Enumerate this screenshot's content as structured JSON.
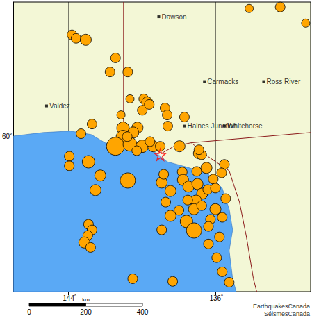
{
  "chart_data": {
    "type": "scatter",
    "xlim": [
      -147,
      -130.8
    ],
    "ylim": [
      54.7,
      64.6
    ],
    "xticks": [
      {
        "value": -144,
        "label": "-144˚"
      },
      {
        "value": -136,
        "label": "-136˚"
      }
    ],
    "yticks": [
      {
        "value": 60,
        "label": "60˚"
      }
    ],
    "grid": true,
    "color": "#ffa500",
    "marker": "circle",
    "x": [
      -132.46,
      -131.07,
      -134.15,
      -143.81,
      -143.59,
      -143.06,
      -141.44,
      -141.74,
      -140.77,
      -139.9,
      -139.71,
      -139.98,
      -139.6,
      -140.65,
      -138.74,
      -138.62,
      -138.59,
      -137.68,
      -141.14,
      -142.72,
      -143.32,
      -141.03,
      -140.24,
      -140.47,
      -141.03,
      -141.44,
      -140.65,
      -139.98,
      -139.38,
      -140.28,
      -140.8,
      -137.95,
      -136.89,
      -136.74,
      -136.89,
      -143.96,
      -143.96,
      -142.91,
      -142.27,
      -140.77,
      -142.53,
      -138.92,
      -138.44,
      -137.8,
      -137.01,
      -136.48,
      -136.11,
      -135.5,
      -135.65,
      -137.76,
      -137.46,
      -136.97,
      -136.71,
      -136.41,
      -135.99,
      -137.05,
      -137.5,
      -137.16,
      -138.7,
      -137.98,
      -136.74,
      -135.99,
      -135.62,
      -136.26,
      -135.43,
      -138.44,
      -137.57,
      -137.16,
      -138.92,
      -136.37,
      -135.77,
      -142.91,
      -142.72,
      -142.95,
      -143.14,
      -142.8,
      -136.37,
      -135.92,
      -135.62,
      -135.24,
      -140.5,
      -138.32,
      -138.81,
      -139.56,
      -139.0
    ],
    "y": [
      64.43,
      63.88,
      64.38,
      63.48,
      63.36,
      63.31,
      62.69,
      62.21,
      62.21,
      61.29,
      61.17,
      60.9,
      61.1,
      61.29,
      60.98,
      60.74,
      60.36,
      60.67,
      60.74,
      60.43,
      60.1,
      60.29,
      60.31,
      60.14,
      59.98,
      59.67,
      59.74,
      59.67,
      59.67,
      59.52,
      60.0,
      59.67,
      59.43,
      59.38,
      59.55,
      59.33,
      59.0,
      59.14,
      58.67,
      58.5,
      58.17,
      58.43,
      58.14,
      58.79,
      58.81,
      58.93,
      58.55,
      59.05,
      58.76,
      58.52,
      58.29,
      58.38,
      58.05,
      58.19,
      58.24,
      57.81,
      57.83,
      57.52,
      57.76,
      57.48,
      57.64,
      57.52,
      57.24,
      57.17,
      57.88,
      57.29,
      57.1,
      56.79,
      56.81,
      56.93,
      56.57,
      57.0,
      56.81,
      56.62,
      56.38,
      56.21,
      56.33,
      55.86,
      55.38,
      55.02,
      55.14,
      55.05,
      58.71,
      59.83,
      59.67
    ],
    "magnitudes": [
      3.5,
      3.0,
      3.0,
      3.5,
      3.5,
      4.0,
      3.5,
      3.5,
      3.5,
      3.5,
      4.0,
      3.5,
      3.5,
      3.0,
      3.5,
      3.5,
      3.5,
      3.5,
      3.0,
      3.5,
      3.5,
      4.5,
      4.0,
      4.0,
      5.0,
      6.5,
      5.0,
      4.5,
      4.0,
      3.5,
      3.5,
      4.0,
      4.0,
      3.5,
      3.5,
      3.5,
      3.5,
      4.5,
      4.0,
      5.5,
      4.0,
      4.0,
      4.0,
      3.5,
      3.5,
      4.0,
      3.5,
      3.5,
      3.5,
      4.0,
      4.0,
      4.0,
      4.0,
      3.5,
      3.5,
      4.0,
      3.5,
      4.0,
      3.5,
      3.5,
      3.5,
      4.0,
      3.5,
      3.5,
      3.5,
      4.0,
      4.5,
      5.5,
      3.5,
      3.5,
      3.5,
      3.5,
      3.5,
      3.5,
      4.0,
      3.5,
      3.5,
      3.5,
      3.5,
      3.5,
      3.5,
      3.5,
      3.5,
      3.5,
      3.5
    ],
    "main_event": {
      "x": -139.0,
      "y": 59.38,
      "marker": "star",
      "color": "#ff0000"
    },
    "places": [
      {
        "label": "Dawson",
        "x": -139.08,
        "y": 64.1
      },
      {
        "label": "Valdez",
        "x": -145.2,
        "y": 61.05
      },
      {
        "label": "Carmacks",
        "x": -136.59,
        "y": 61.88
      },
      {
        "label": "Ross River",
        "x": -133.36,
        "y": 61.88
      },
      {
        "label": "Haines Junction",
        "x": -137.68,
        "y": 60.36
      },
      {
        "label": "Whitehorse",
        "x": -135.5,
        "y": 60.36
      }
    ],
    "coastline": [
      [
        -147,
        54.7
      ],
      [
        -147,
        60.02
      ],
      [
        -145.39,
        60.14
      ],
      [
        -143.89,
        60.19
      ],
      [
        -142.76,
        60.07
      ],
      [
        -142.01,
        59.79
      ],
      [
        -141.07,
        59.6
      ],
      [
        -139.75,
        59.6
      ],
      [
        -139.19,
        59.43
      ],
      [
        -138.62,
        59.14
      ],
      [
        -137.5,
        58.95
      ],
      [
        -136.37,
        58.71
      ],
      [
        -135.62,
        58.24
      ],
      [
        -135.24,
        57.52
      ],
      [
        -135.05,
        56.81
      ],
      [
        -135.24,
        56.1
      ],
      [
        -135.05,
        55.14
      ],
      [
        -134.86,
        54.7
      ]
    ],
    "borders": [
      [
        [
          -141.0,
          64.6
        ],
        [
          -141.0,
          59.9
        ],
        [
          -139.68,
          59.67
        ],
        [
          -138.92,
          59.43
        ],
        [
          -138.25,
          59.67
        ],
        [
          -137.31,
          59.79
        ],
        [
          -136.37,
          59.31
        ],
        [
          -135.24,
          58.83
        ],
        [
          -134.68,
          57.76
        ],
        [
          -134.3,
          56.57
        ],
        [
          -133.92,
          55.14
        ],
        [
          -133.74,
          54.7
        ]
      ],
      [
        [
          -137.31,
          59.79
        ],
        [
          -130.8,
          60.14
        ]
      ]
    ],
    "scale_bar": {
      "ticks": [
        0,
        200,
        400
      ],
      "unit": "km"
    },
    "credits": [
      "EarthquakesCanada",
      "SéismesCanada"
    ]
  }
}
